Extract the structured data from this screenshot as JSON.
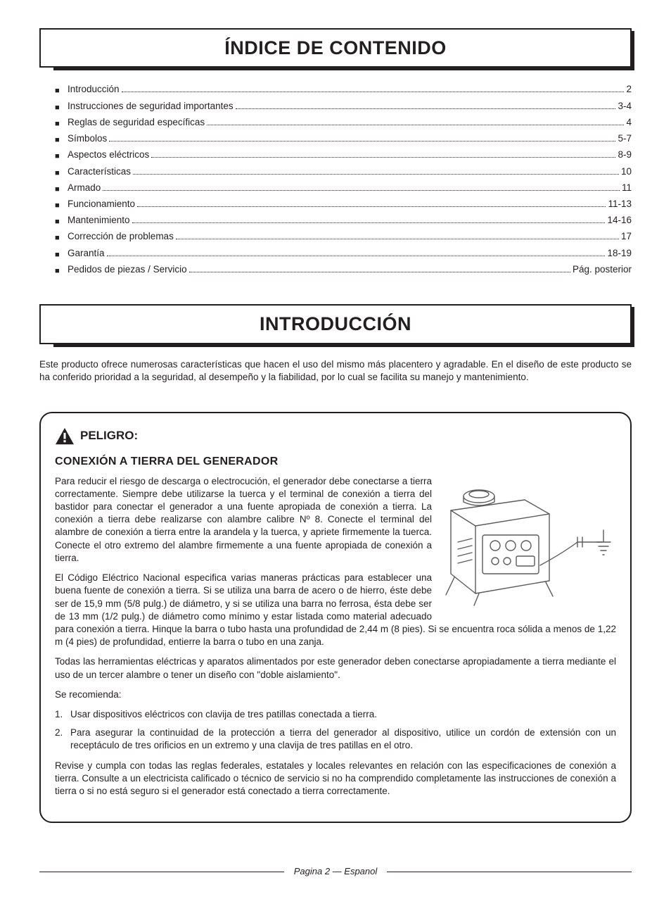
{
  "colors": {
    "text": "#231f20",
    "background": "#ffffff",
    "rule": "#231f20",
    "illustration_stroke": "#5c5c5c"
  },
  "typography": {
    "body_font": "Arial, Helvetica, sans-serif",
    "body_size_pt": 10,
    "heading_size_pt": 20,
    "subhead_size_pt": 12
  },
  "sections": {
    "toc_title": "ÍNDICE DE CONTENIDO",
    "intro_title": "INTRODUCCIÓN"
  },
  "toc": [
    {
      "label": "Introducción",
      "page": "2"
    },
    {
      "label": "Instrucciones de seguridad importantes",
      "page": "3-4"
    },
    {
      "label": "Reglas de seguridad específicas",
      "page": "4"
    },
    {
      "label": "Símbolos",
      "page": "5-7"
    },
    {
      "label": "Aspectos eléctricos",
      "page": "8-9"
    },
    {
      "label": "Características",
      "page": "10"
    },
    {
      "label": "Armado",
      "page": "11"
    },
    {
      "label": "Funcionamiento",
      "page": "11-13"
    },
    {
      "label": "Mantenimiento",
      "page": "14-16"
    },
    {
      "label": "Corrección de problemas",
      "page": "17"
    },
    {
      "label": "Garantía",
      "page": "18-19"
    },
    {
      "label": "Pedidos de piezas / Servicio",
      "page": "Pág. posterior"
    }
  ],
  "intro_paragraph": "Este producto ofrece numerosas características que hacen el uso del mismo más placentero y agradable. En el diseño de este producto se ha conferido prioridad a la seguridad, al desempeño y la fiabilidad, por lo cual se facilita su manejo y mantenimiento.",
  "danger": {
    "label": "PELIGRO:",
    "subhead": "CONEXIÓN A TIERRA DEL GENERADOR",
    "p1": "Para reducir el riesgo de descarga o electrocución, el generador debe conectarse a tierra correctamente. Siempre debe utilizarse la tuerca y el terminal de conexión a tierra del bastidor para conectar el generador a una fuente apropiada de conexión a tierra. La conexión a tierra debe realizarse con alambre calibre Nº 8. Conecte el terminal del alambre de conexión a tierra entre la arandela y la tuerca, y apriete firmemente la tuerca. Conecte el otro extremo del alambre firmemente a una fuente apropiada de conexión a tierra.",
    "p2": "El Código Eléctrico Nacional especifica varias maneras prácticas para establecer una buena fuente de conexión a tierra. Si se utiliza una barra de acero o de hierro, éste debe ser de 15,9 mm (5/8 pulg.) de diámetro, y si se utiliza una barra no ferrosa, ésta debe ser de 13 mm (1/2 pulg.) de diámetro como mínimo y estar listada como material adecuado para conexión a tierra. Hinque la barra o tubo hasta una profundidad de 2,44 m (8 pies). Si se encuentra roca sólida a menos de 1,22 m (4 pies) de profundidad, entierre la barra o tubo en una zanja.",
    "p3": "Todas las herramientas eléctricas y aparatos alimentados por este generador deben conectarse apropiadamente a tierra mediante el uso de un tercer alambre o tener un diseño con \"doble aislamiento\".",
    "rec_label": "Se recomienda:",
    "recs": [
      "Usar dispositivos eléctricos con clavija de tres patillas conectada a tierra.",
      "Para asegurar la continuidad de la protección a tierra del generador al dispositivo, utilice un cordón de extensión con un receptáculo de tres orificios en un extremo y una clavija de tres patillas en el otro."
    ],
    "p4": "Revise y cumpla con todas las reglas federales, estatales y locales relevantes en relación con las especificaciones de conexión a tierra. Consulte a un electricista calificado o técnico de servicio si no ha comprendido completamente las instrucciones de conexión a tierra o si no está seguro si el generador está conectado a tierra correctamente."
  },
  "footer": "Pagina 2 — Espanol"
}
